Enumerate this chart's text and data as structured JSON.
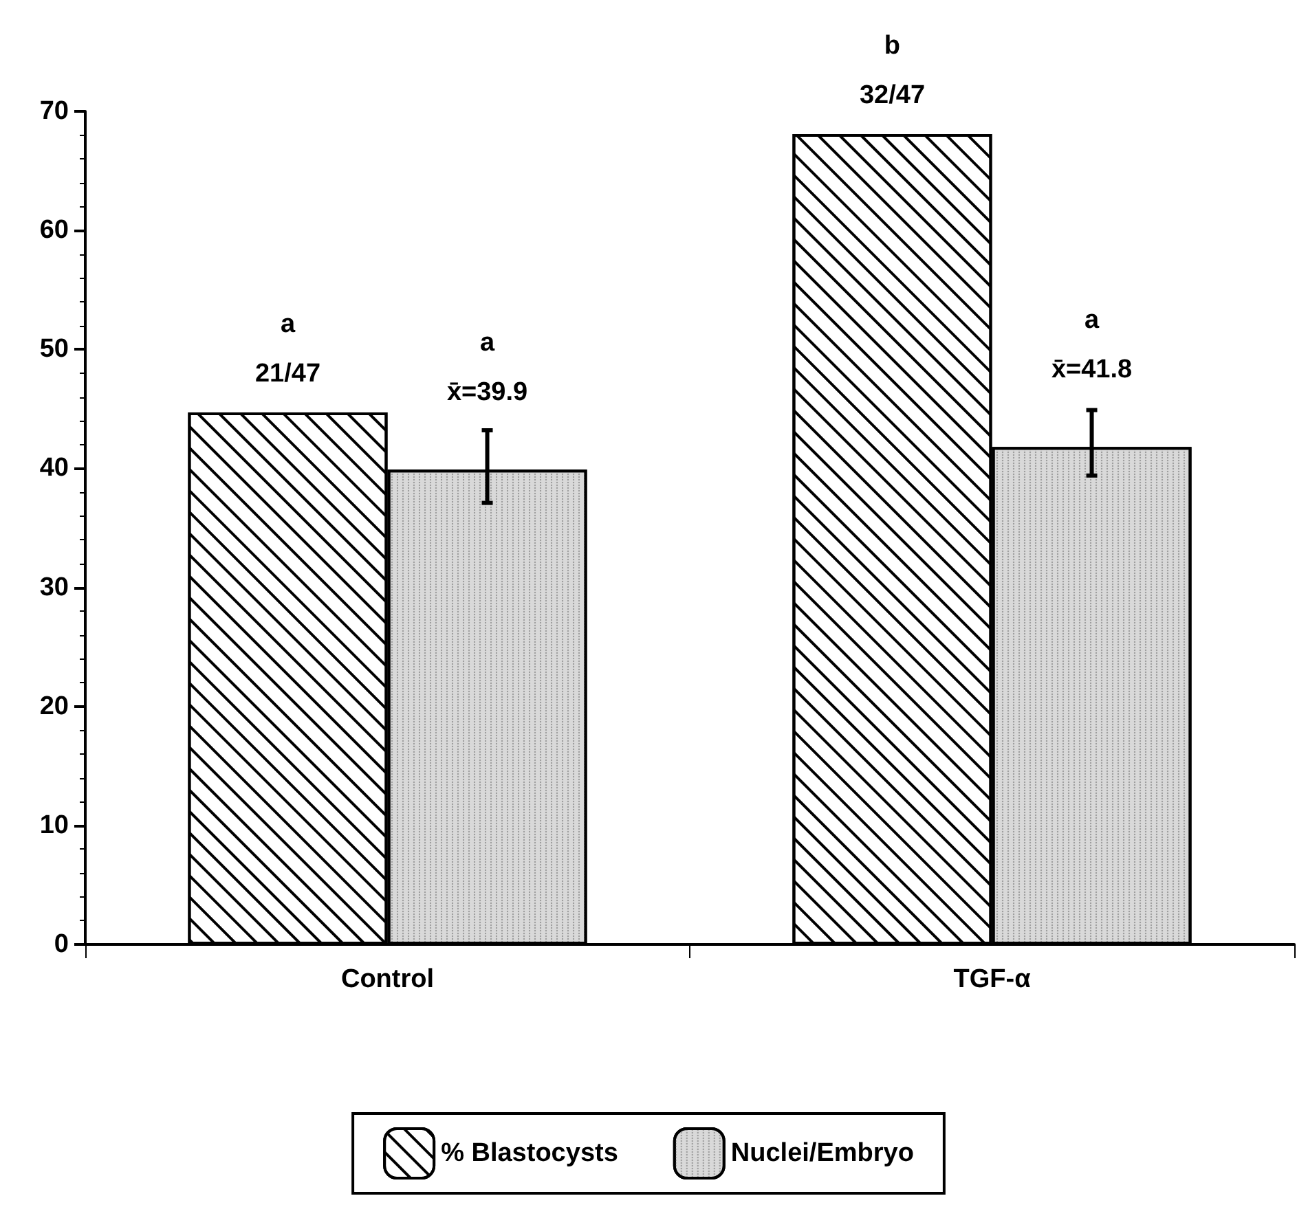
{
  "chart_data": {
    "type": "bar",
    "categories": [
      "Control",
      "TGF-α"
    ],
    "series": [
      {
        "name": "% Blastocysts",
        "color": "#ffffff",
        "values": [
          44.7,
          68.1
        ],
        "value_labels": [
          "a\n21/47",
          "b\n32/47"
        ]
      },
      {
        "name": "Nuclei/Embryo",
        "color": "#d9d9d9",
        "values": [
          39.9,
          41.8
        ],
        "errors": [
          [
            37.1,
            43.2
          ],
          [
            39.4,
            44.9
          ]
        ],
        "value_labels": [
          "a\nx̄=39.9",
          "a\nx̄=41.8"
        ]
      }
    ],
    "ylim": [
      0,
      70
    ],
    "yticks": [
      0,
      10,
      20,
      30,
      40,
      50,
      60,
      70
    ],
    "grid": false,
    "legend": "bottom"
  }
}
